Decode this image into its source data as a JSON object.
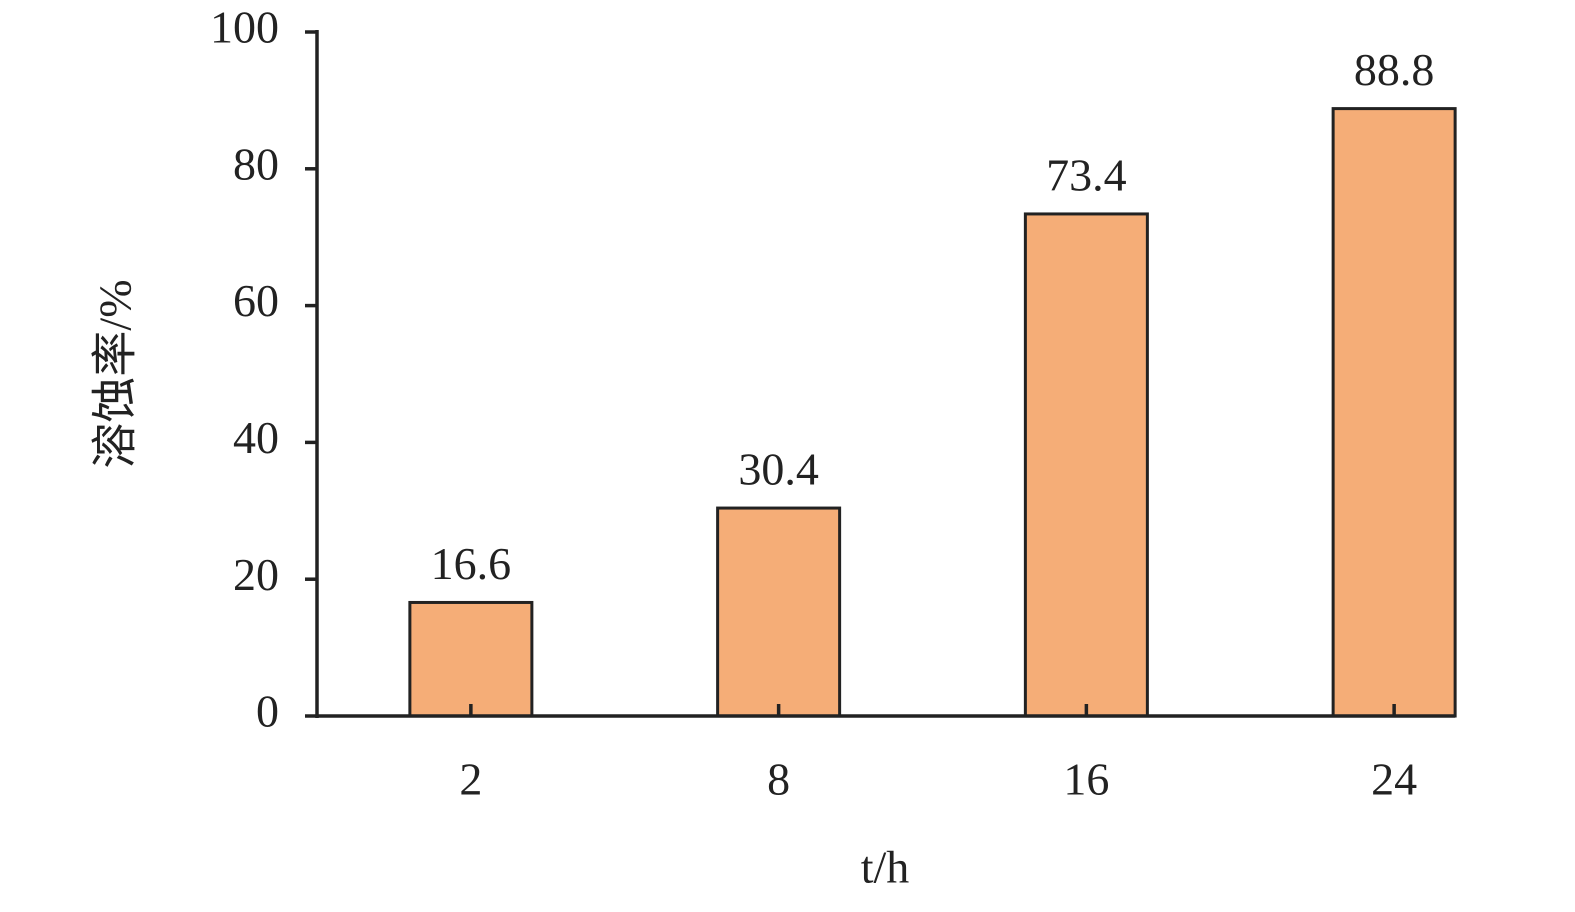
{
  "chart_data": {
    "type": "bar",
    "x_label": "t/h",
    "y_label": "溶蚀率/%",
    "categories": [
      "2",
      "8",
      "16",
      "24"
    ],
    "values": [
      16.6,
      30.4,
      73.4,
      88.8
    ],
    "color": "#f5ad77",
    "ylim": [
      0,
      100
    ],
    "yticks": [
      0,
      20,
      40,
      60,
      80,
      100
    ],
    "grid": false
  }
}
